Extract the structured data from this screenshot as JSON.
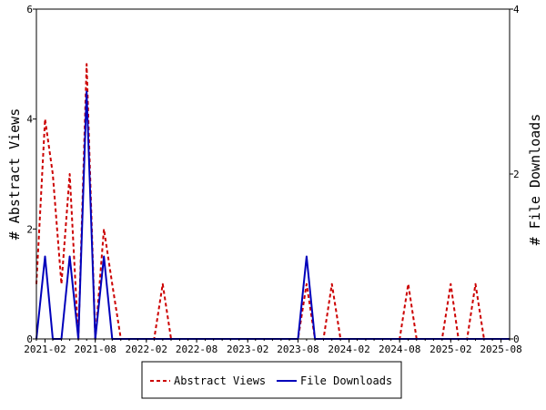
{
  "chart_data": {
    "type": "line",
    "x_dates": [
      "2021-01-01",
      "2021-02-01",
      "2021-03-01",
      "2021-04-01",
      "2021-05-01",
      "2021-06-01",
      "2021-07-01",
      "2021-08-01",
      "2021-09-01",
      "2021-10-01",
      "2021-11-01",
      "2021-12-01",
      "2022-01-01",
      "2022-02-01",
      "2022-03-01",
      "2022-04-01",
      "2022-05-01",
      "2022-06-01",
      "2022-07-01",
      "2022-08-01",
      "2022-09-01",
      "2022-10-01",
      "2022-11-01",
      "2022-12-01",
      "2023-01-01",
      "2023-02-01",
      "2023-03-01",
      "2023-04-01",
      "2023-05-01",
      "2023-06-01",
      "2023-07-01",
      "2023-08-01",
      "2023-09-01",
      "2023-10-01",
      "2023-11-01",
      "2023-12-01",
      "2024-01-01",
      "2024-02-01",
      "2024-03-01",
      "2024-04-01",
      "2024-05-01",
      "2024-06-01",
      "2024-07-01",
      "2024-08-01",
      "2024-09-01",
      "2024-10-01",
      "2024-11-01",
      "2024-12-01",
      "2025-01-01",
      "2025-02-01",
      "2025-03-01",
      "2025-04-01",
      "2025-05-01",
      "2025-06-01",
      "2025-07-01",
      "2025-08-01",
      "2025-09-01"
    ],
    "series": [
      {
        "name": "Abstract Views",
        "axis": "left",
        "color": "#cc0000",
        "dash": "dashed",
        "values": [
          1,
          4,
          3,
          1,
          3,
          0,
          5,
          0,
          2,
          1,
          0,
          0,
          0,
          0,
          0,
          1,
          0,
          0,
          0,
          0,
          0,
          0,
          0,
          0,
          0,
          0,
          0,
          0,
          0,
          0,
          0,
          0,
          1,
          0,
          0,
          1,
          0,
          0,
          0,
          0,
          0,
          0,
          0,
          0,
          1,
          0,
          0,
          0,
          0,
          1,
          0,
          0,
          1,
          0,
          0,
          0,
          0
        ]
      },
      {
        "name": "File Downloads",
        "axis": "right",
        "color": "#0000bb",
        "dash": "solid",
        "values": [
          0,
          1,
          0,
          0,
          1,
          0,
          3,
          0,
          1,
          0,
          0,
          0,
          0,
          0,
          0,
          0,
          0,
          0,
          0,
          0,
          0,
          0,
          0,
          0,
          0,
          0,
          0,
          0,
          0,
          0,
          0,
          0,
          1,
          0,
          0,
          0,
          0,
          0,
          0,
          0,
          0,
          0,
          0,
          0,
          0,
          0,
          0,
          0,
          0,
          0,
          0,
          0,
          0,
          0,
          0,
          0,
          0
        ]
      }
    ],
    "x_ticks": [
      "2021-02",
      "2021-08",
      "2022-02",
      "2022-08",
      "2023-02",
      "2023-08",
      "2024-02",
      "2024-08",
      "2025-02",
      "2025-08"
    ],
    "y_left": {
      "label": "# Abstract Views",
      "ticks": [
        "0",
        "2",
        "4",
        "6"
      ],
      "range": [
        0,
        6
      ]
    },
    "y_right": {
      "label": "# File Downloads",
      "ticks": [
        "0",
        "2",
        "4"
      ],
      "range": [
        0,
        4
      ]
    },
    "legend_position": "bottom",
    "grid": false
  },
  "legend": {
    "abstract_label": "Abstract Views",
    "downloads_label": "File Downloads"
  }
}
